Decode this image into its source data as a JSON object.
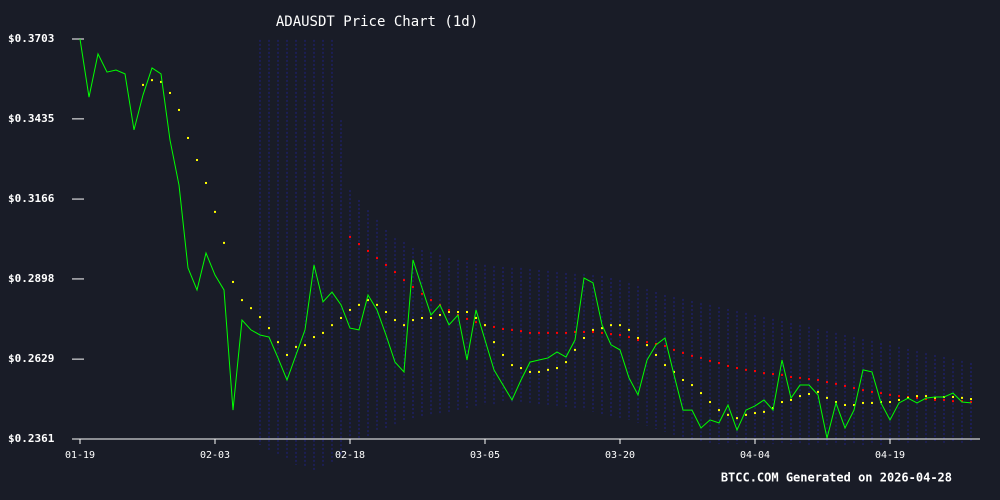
{
  "chart_data": {
    "type": "line",
    "title": "ADAUSDT Price Chart (1d)",
    "annotation": "BTCC.COM Generated on 2026-04-28",
    "x": [
      0,
      1,
      2,
      3,
      4,
      5,
      6,
      7,
      8,
      9,
      10,
      11,
      12,
      13,
      14,
      15,
      16,
      17,
      18,
      19,
      20,
      21,
      22,
      23,
      24,
      25,
      26,
      27,
      28,
      29,
      30,
      31,
      32,
      33,
      34,
      35,
      36,
      37,
      38,
      39,
      40,
      41,
      42,
      43,
      44,
      45,
      46,
      47,
      48,
      49,
      50,
      51,
      52,
      53,
      54,
      55,
      56,
      57,
      58,
      59,
      60,
      61,
      62,
      63,
      64,
      65,
      66,
      67,
      68,
      69,
      70,
      71,
      72,
      73,
      74,
      75,
      76,
      77,
      78,
      79,
      80,
      81,
      82,
      83,
      84,
      85,
      86,
      87,
      88,
      89,
      90,
      91,
      92,
      93,
      94,
      95,
      96,
      97,
      98,
      99
    ],
    "xlim": [
      0,
      100
    ],
    "xticks": [
      {
        "value": 0,
        "label": "01-19"
      },
      {
        "value": 15,
        "label": "02-03"
      },
      {
        "value": 30,
        "label": "02-18"
      },
      {
        "value": 45,
        "label": "03-05"
      },
      {
        "value": 60,
        "label": "03-20"
      },
      {
        "value": 75,
        "label": "04-04"
      },
      {
        "value": 90,
        "label": "04-19"
      }
    ],
    "ylim": [
      0.2361,
      0.3703
    ],
    "yticks": [
      {
        "value": 0.2361,
        "label": "$0.2361"
      },
      {
        "value": 0.2629,
        "label": "$0.2629"
      },
      {
        "value": 0.2898,
        "label": "$0.2898"
      },
      {
        "value": 0.3166,
        "label": "$0.3166"
      },
      {
        "value": 0.3435,
        "label": "$0.3435"
      },
      {
        "value": 0.3703,
        "label": "$0.3703"
      }
    ],
    "bands": {
      "color": "#1e2180",
      "upper": [
        null,
        null,
        null,
        null,
        null,
        null,
        null,
        null,
        null,
        null,
        null,
        null,
        null,
        null,
        null,
        null,
        null,
        null,
        null,
        null,
        0.37,
        0.37,
        0.37,
        0.37,
        0.37,
        0.37,
        0.37,
        0.37,
        0.37,
        0.3431,
        0.3196,
        0.3163,
        0.3129,
        0.3096,
        0.3062,
        0.3035,
        0.3022,
        0.3002,
        0.2995,
        0.2988,
        0.2978,
        0.2968,
        0.2962,
        0.2955,
        0.2948,
        0.2945,
        0.2941,
        0.2938,
        0.2935,
        0.2935,
        0.2931,
        0.2928,
        0.2925,
        0.2921,
        0.2918,
        0.2915,
        0.2915,
        0.2911,
        0.2908,
        0.2901,
        0.2894,
        0.2884,
        0.2874,
        0.2864,
        0.2854,
        0.2844,
        0.2837,
        0.2831,
        0.2824,
        0.2817,
        0.2811,
        0.2804,
        0.2797,
        0.279,
        0.2784,
        0.2777,
        0.277,
        0.2764,
        0.2757,
        0.275,
        0.2743,
        0.2737,
        0.273,
        0.2723,
        0.2717,
        0.271,
        0.2703,
        0.2696,
        0.269,
        0.2683,
        0.2676,
        0.267,
        0.2663,
        0.2656,
        0.2649,
        0.2643,
        0.2636,
        0.2629,
        0.2623,
        0.2616
      ],
      "lower": [
        null,
        null,
        null,
        null,
        null,
        null,
        null,
        null,
        null,
        null,
        null,
        null,
        null,
        null,
        null,
        null,
        null,
        null,
        null,
        null,
        0.2341,
        0.2324,
        0.2307,
        0.2291,
        0.2274,
        0.2264,
        0.2257,
        0.2264,
        0.2284,
        0.2307,
        0.2341,
        0.2358,
        0.2371,
        0.2385,
        0.2398,
        0.2408,
        0.2418,
        0.2425,
        0.2432,
        0.2438,
        0.2445,
        0.2452,
        0.2458,
        0.2465,
        0.2472,
        0.2475,
        0.2478,
        0.2482,
        0.2485,
        0.2485,
        0.2482,
        0.2478,
        0.2475,
        0.2472,
        0.2468,
        0.2465,
        0.2458,
        0.2452,
        0.2445,
        0.2438,
        0.2432,
        0.2425,
        0.2415,
        0.2405,
        0.2394,
        0.2385,
        0.2375,
        0.2364,
        0.2358,
        0.2351,
        0.2344,
        0.2344,
        0.2344,
        0.2344,
        0.2344,
        0.2344,
        0.2344,
        0.2344,
        0.2344,
        0.2344,
        0.2341,
        0.2341,
        0.2341,
        0.2341,
        0.2341,
        0.2341,
        0.2341,
        0.2341,
        0.2341,
        0.2341,
        0.2348,
        0.2348,
        0.2348,
        0.2348,
        0.2348,
        0.2348,
        0.2348,
        0.2348,
        0.2348,
        0.2348
      ]
    },
    "series": [
      {
        "color": "#00ff00",
        "style": "line",
        "values": [
          0.3703,
          0.3508,
          0.3653,
          0.3592,
          0.3599,
          0.3586,
          0.3398,
          0.3515,
          0.3606,
          0.3586,
          0.3364,
          0.3213,
          0.2935,
          0.2861,
          0.2985,
          0.2911,
          0.2861,
          0.2458,
          0.276,
          0.2727,
          0.271,
          0.2703,
          0.2633,
          0.2559,
          0.2643,
          0.2727,
          0.2945,
          0.2821,
          0.2854,
          0.2811,
          0.2733,
          0.2727,
          0.2844,
          0.2794,
          0.271,
          0.2619,
          0.2586,
          0.2962,
          0.2868,
          0.2777,
          0.2811,
          0.2744,
          0.2777,
          0.2626,
          0.2794,
          0.2693,
          0.2593,
          0.2542,
          0.2492,
          0.2559,
          0.2619,
          0.2626,
          0.2633,
          0.2653,
          0.2636,
          0.2693,
          0.2901,
          0.2885,
          0.2744,
          0.2677,
          0.266,
          0.2566,
          0.2509,
          0.2626,
          0.2677,
          0.27,
          0.2576,
          0.2458,
          0.2458,
          0.2398,
          0.2425,
          0.2415,
          0.2475,
          0.2391,
          0.2458,
          0.2472,
          0.2492,
          0.2458,
          0.2626,
          0.2498,
          0.2542,
          0.2542,
          0.2509,
          0.2364,
          0.2482,
          0.2398,
          0.2458,
          0.2593,
          0.2586,
          0.2482,
          0.2425,
          0.2482,
          0.2498,
          0.2482,
          0.2498,
          0.2502,
          0.2502,
          0.2515,
          0.2485,
          0.2482
        ]
      },
      {
        "color": "#ffff00",
        "style": "dots",
        "values": [
          null,
          null,
          null,
          null,
          null,
          null,
          null,
          0.3549,
          0.3565,
          0.3559,
          0.3522,
          0.3465,
          0.3371,
          0.3297,
          0.322,
          0.3123,
          0.3019,
          0.2888,
          0.2827,
          0.28,
          0.277,
          0.2733,
          0.2686,
          0.2643,
          0.267,
          0.2676,
          0.2703,
          0.2717,
          0.2743,
          0.2767,
          0.2794,
          0.2811,
          0.2827,
          0.2811,
          0.2787,
          0.276,
          0.2743,
          0.276,
          0.2767,
          0.2767,
          0.2777,
          0.2787,
          0.2787,
          0.2787,
          0.2767,
          0.2743,
          0.2686,
          0.2643,
          0.2609,
          0.2599,
          0.2586,
          0.2586,
          0.2593,
          0.2599,
          0.2619,
          0.266,
          0.27,
          0.2727,
          0.2733,
          0.2743,
          0.2743,
          0.2727,
          0.27,
          0.2676,
          0.2643,
          0.2609,
          0.2586,
          0.2559,
          0.2542,
          0.2515,
          0.2485,
          0.2458,
          0.2442,
          0.2431,
          0.2442,
          0.2448,
          0.2452,
          0.2465,
          0.2485,
          0.2492,
          0.2505,
          0.2512,
          0.2519,
          0.2499,
          0.2485,
          0.2475,
          0.2475,
          0.2482,
          0.2482,
          0.2485,
          0.2485,
          0.2492,
          0.2499,
          0.2505,
          0.2505,
          0.2499,
          0.2502,
          0.2502,
          0.2499,
          0.2495
        ]
      },
      {
        "color": "#ff0000",
        "style": "dots",
        "values": [
          null,
          null,
          null,
          null,
          null,
          null,
          null,
          null,
          null,
          null,
          null,
          null,
          null,
          null,
          null,
          null,
          null,
          null,
          null,
          null,
          null,
          null,
          null,
          null,
          null,
          null,
          null,
          null,
          null,
          null,
          0.3039,
          0.3015,
          0.2992,
          0.2968,
          0.2945,
          0.2921,
          0.2894,
          0.2871,
          0.2848,
          0.2827,
          0.2811,
          0.2794,
          0.2777,
          0.2764,
          0.2753,
          0.2743,
          0.2737,
          0.273,
          0.2727,
          0.2723,
          0.2717,
          0.2717,
          0.2717,
          0.2717,
          0.2717,
          0.272,
          0.272,
          0.272,
          0.2717,
          0.2713,
          0.271,
          0.2703,
          0.2693,
          0.2686,
          0.268,
          0.2673,
          0.266,
          0.265,
          0.264,
          0.2633,
          0.2623,
          0.2616,
          0.2606,
          0.2599,
          0.2593,
          0.2589,
          0.2582,
          0.2579,
          0.2576,
          0.2569,
          0.2566,
          0.2562,
          0.2559,
          0.2552,
          0.2546,
          0.2539,
          0.2532,
          0.2525,
          0.2519,
          0.2515,
          0.2509,
          0.2505,
          0.2502,
          0.2499,
          0.2495,
          0.2492,
          0.2492,
          0.2488,
          0.2488,
          0.2485
        ]
      }
    ]
  }
}
